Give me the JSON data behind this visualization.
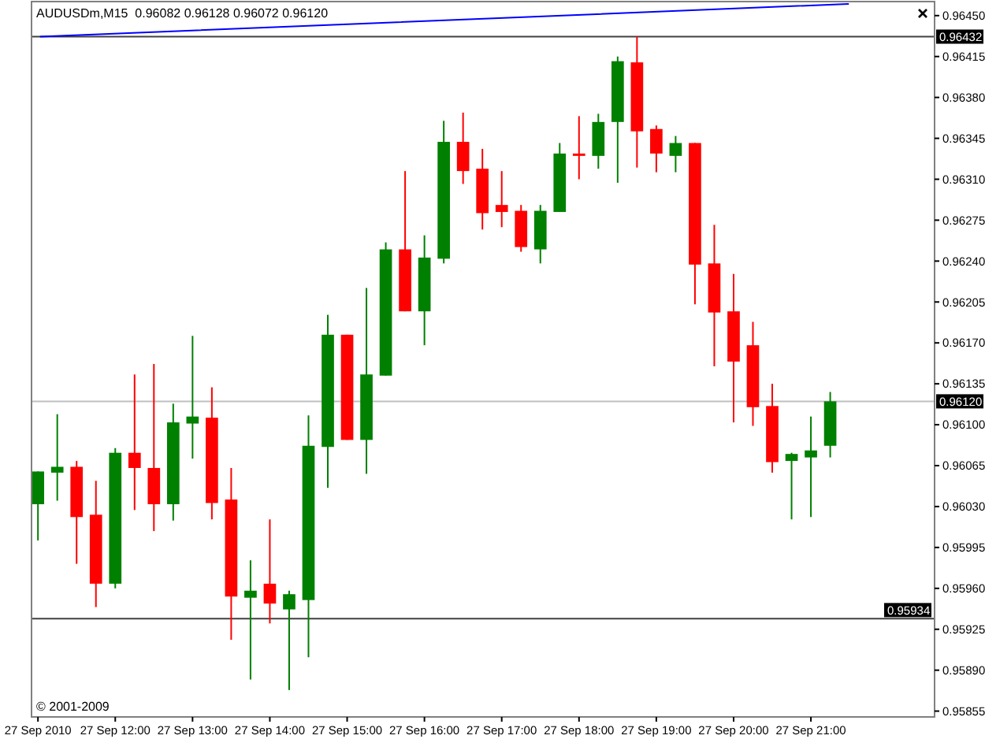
{
  "chart_data": {
    "type": "candlestick",
    "title": "AUDUSDm,M15  0.96082 0.96128 0.96072 0.96120",
    "x": [
      "2010-09-27T11:00",
      "2010-09-27T11:15",
      "2010-09-27T11:30",
      "2010-09-27T11:45",
      "2010-09-27T12:00",
      "2010-09-27T12:15",
      "2010-09-27T12:30",
      "2010-09-27T12:45",
      "2010-09-27T13:00",
      "2010-09-27T13:15",
      "2010-09-27T13:30",
      "2010-09-27T13:45",
      "2010-09-27T14:00",
      "2010-09-27T14:15",
      "2010-09-27T14:30",
      "2010-09-27T14:45",
      "2010-09-27T15:00",
      "2010-09-27T15:15",
      "2010-09-27T15:30",
      "2010-09-27T15:45",
      "2010-09-27T16:00",
      "2010-09-27T16:15",
      "2010-09-27T16:30",
      "2010-09-27T16:45",
      "2010-09-27T17:00",
      "2010-09-27T17:15",
      "2010-09-27T17:30",
      "2010-09-27T17:45",
      "2010-09-27T18:00",
      "2010-09-27T18:15",
      "2010-09-27T18:30",
      "2010-09-27T18:45",
      "2010-09-27T19:00",
      "2010-09-27T19:15",
      "2010-09-27T19:30",
      "2010-09-27T19:45",
      "2010-09-27T20:00",
      "2010-09-27T20:15",
      "2010-09-27T20:30",
      "2010-09-27T20:45",
      "2010-09-27T21:00",
      "2010-09-27T21:15"
    ],
    "ohlc": [
      [
        0.96032,
        0.9606,
        0.96001,
        0.9606
      ],
      [
        0.96059,
        0.96109,
        0.96035,
        0.96064
      ],
      [
        0.96064,
        0.96069,
        0.95981,
        0.96021
      ],
      [
        0.96023,
        0.96052,
        0.95944,
        0.95964
      ],
      [
        0.95964,
        0.9608,
        0.9596,
        0.96076
      ],
      [
        0.96076,
        0.96143,
        0.96027,
        0.96063
      ],
      [
        0.96063,
        0.96152,
        0.96009,
        0.96032
      ],
      [
        0.96032,
        0.96118,
        0.96018,
        0.96102
      ],
      [
        0.96101,
        0.96176,
        0.96071,
        0.96107
      ],
      [
        0.96106,
        0.96132,
        0.96019,
        0.96033
      ],
      [
        0.96036,
        0.96063,
        0.95916,
        0.95953
      ],
      [
        0.95952,
        0.95984,
        0.95882,
        0.95958
      ],
      [
        0.95964,
        0.96019,
        0.9593,
        0.95947
      ],
      [
        0.95942,
        0.95958,
        0.95873,
        0.95955
      ],
      [
        0.9595,
        0.96108,
        0.95901,
        0.96082
      ],
      [
        0.96081,
        0.96194,
        0.96046,
        0.96177
      ],
      [
        0.96177,
        0.96177,
        0.96087,
        0.96087
      ],
      [
        0.96087,
        0.96217,
        0.96058,
        0.96143
      ],
      [
        0.96142,
        0.96256,
        0.96142,
        0.9625
      ],
      [
        0.9625,
        0.96317,
        0.96197,
        0.96197
      ],
      [
        0.96197,
        0.96262,
        0.96168,
        0.96243
      ],
      [
        0.96242,
        0.9636,
        0.96238,
        0.96342
      ],
      [
        0.96342,
        0.96367,
        0.96306,
        0.96317
      ],
      [
        0.96319,
        0.96336,
        0.96267,
        0.96281
      ],
      [
        0.96288,
        0.96317,
        0.96269,
        0.96282
      ],
      [
        0.96283,
        0.96288,
        0.96248,
        0.96252
      ],
      [
        0.9625,
        0.96288,
        0.96238,
        0.96283
      ],
      [
        0.96282,
        0.96341,
        0.96282,
        0.96332
      ],
      [
        0.96332,
        0.96364,
        0.9631,
        0.9633
      ],
      [
        0.9633,
        0.96366,
        0.96319,
        0.96359
      ],
      [
        0.96359,
        0.96415,
        0.96307,
        0.96411
      ],
      [
        0.9641,
        0.96432,
        0.9632,
        0.96351
      ],
      [
        0.96353,
        0.96356,
        0.96316,
        0.96332
      ],
      [
        0.9633,
        0.96347,
        0.96316,
        0.96341
      ],
      [
        0.96341,
        0.96341,
        0.96203,
        0.96237
      ],
      [
        0.96238,
        0.96271,
        0.9615,
        0.96196
      ],
      [
        0.96197,
        0.96229,
        0.96102,
        0.96154
      ],
      [
        0.96168,
        0.96188,
        0.96099,
        0.96115
      ],
      [
        0.96116,
        0.96135,
        0.96059,
        0.96068
      ],
      [
        0.96069,
        0.96076,
        0.96019,
        0.96075
      ],
      [
        0.96072,
        0.96107,
        0.96021,
        0.96078
      ],
      [
        0.96082,
        0.96128,
        0.96072,
        0.9612
      ]
    ],
    "colors": [
      "#008000",
      "#008000",
      "#ff0000",
      "#ff0000",
      "#008000",
      "#ff0000",
      "#ff0000",
      "#008000",
      "#008000",
      "#ff0000",
      "#ff0000",
      "#008000",
      "#ff0000",
      "#008000",
      "#008000",
      "#008000",
      "#ff0000",
      "#008000",
      "#008000",
      "#ff0000",
      "#008000",
      "#008000",
      "#ff0000",
      "#ff0000",
      "#ff0000",
      "#ff0000",
      "#008000",
      "#008000",
      "#ff0000",
      "#008000",
      "#008000",
      "#ff0000",
      "#ff0000",
      "#008000",
      "#ff0000",
      "#ff0000",
      "#ff0000",
      "#ff0000",
      "#ff0000",
      "#008000",
      "#008000",
      "#008000"
    ],
    "series": [
      {
        "type": "line",
        "x": [
          "2010-09-27T11:02",
          "2010-09-27T21:29"
        ],
        "values": [
          0.96432,
          0.9646
        ],
        "color": "#0000ff"
      }
    ],
    "xlim": [
      "2010-09-27T10:55",
      "2010-09-27T22:36"
    ],
    "xticks": [
      {
        "value": "2010-09-27T11:00",
        "label": "27 Sep 2010"
      },
      {
        "value": "2010-09-27T12:00",
        "label": "27 Sep 12:00"
      },
      {
        "value": "2010-09-27T13:00",
        "label": "27 Sep 13:00"
      },
      {
        "value": "2010-09-27T14:00",
        "label": "27 Sep 14:00"
      },
      {
        "value": "2010-09-27T15:00",
        "label": "27 Sep 15:00"
      },
      {
        "value": "2010-09-27T16:00",
        "label": "27 Sep 16:00"
      },
      {
        "value": "2010-09-27T17:00",
        "label": "27 Sep 17:00"
      },
      {
        "value": "2010-09-27T18:00",
        "label": "27 Sep 18:00"
      },
      {
        "value": "2010-09-27T19:00",
        "label": "27 Sep 19:00"
      },
      {
        "value": "2010-09-27T20:00",
        "label": "27 Sep 20:00"
      },
      {
        "value": "2010-09-27T21:00",
        "label": "27 Sep 21:00"
      }
    ],
    "ylim": [
      0.9585,
      0.96462
    ],
    "yticks": [
      {
        "value": 0.9645,
        "label": "0.96450"
      },
      0.96415,
      {
        "value": 0.9638,
        "label": "0.96380"
      },
      0.96345,
      {
        "value": 0.9631,
        "label": "0.96310"
      },
      0.96275,
      {
        "value": 0.9624,
        "label": "0.96240"
      },
      0.96205,
      {
        "value": 0.9617,
        "label": "0.96170"
      },
      0.96135,
      {
        "value": 0.961,
        "label": "0.96100"
      },
      0.96065,
      {
        "value": 0.9603,
        "label": "0.96030"
      },
      0.95995,
      {
        "value": 0.9596,
        "label": "0.95960"
      },
      0.95925,
      {
        "value": 0.9589,
        "label": "0.95890"
      },
      0.95855
    ],
    "ref_lines": [
      {
        "axis": "y",
        "value": 0.96432,
        "label": "0.96432",
        "color": "#404040"
      },
      {
        "axis": "y",
        "value": 0.9612,
        "label": "0.96120",
        "color": "#c0c0c0"
      },
      {
        "axis": "y",
        "value": 0.95934,
        "label": "0.95934",
        "color": "#404040"
      }
    ],
    "annotations": [
      "© 2001-2009"
    ]
  }
}
